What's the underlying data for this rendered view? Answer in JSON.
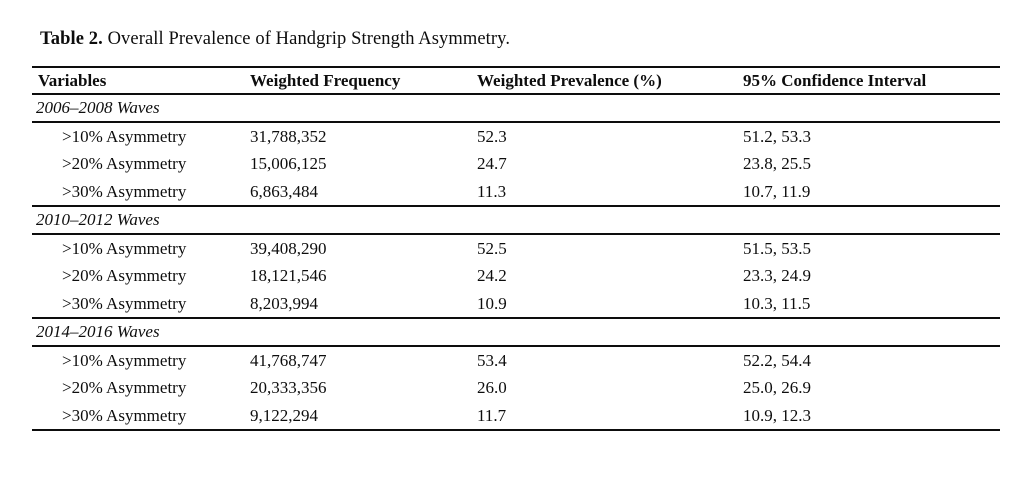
{
  "title": {
    "label": "Table 2.",
    "caption": "Overall Prevalence of Handgrip Strength Asymmetry."
  },
  "table": {
    "columns": [
      "Variables",
      "Weighted Frequency",
      "Weighted Prevalence (%)",
      "95% Confidence Interval"
    ],
    "sections": [
      {
        "header": "2006–2008 Waves",
        "rows": [
          {
            "variable": ">10% Asymmetry",
            "frequency": "31,788,352",
            "prevalence": "52.3",
            "ci": "51.2, 53.3"
          },
          {
            "variable": ">20% Asymmetry",
            "frequency": "15,006,125",
            "prevalence": "24.7",
            "ci": "23.8, 25.5"
          },
          {
            "variable": ">30% Asymmetry",
            "frequency": "6,863,484",
            "prevalence": "11.3",
            "ci": "10.7, 11.9"
          }
        ]
      },
      {
        "header": "2010–2012 Waves",
        "rows": [
          {
            "variable": ">10% Asymmetry",
            "frequency": "39,408,290",
            "prevalence": "52.5",
            "ci": "51.5, 53.5"
          },
          {
            "variable": ">20% Asymmetry",
            "frequency": "18,121,546",
            "prevalence": "24.2",
            "ci": "23.3, 24.9"
          },
          {
            "variable": ">30% Asymmetry",
            "frequency": "8,203,994",
            "prevalence": "10.9",
            "ci": "10.3, 11.5"
          }
        ]
      },
      {
        "header": "2014–2016 Waves",
        "rows": [
          {
            "variable": ">10% Asymmetry",
            "frequency": "41,768,747",
            "prevalence": "53.4",
            "ci": "52.2, 54.4"
          },
          {
            "variable": ">20% Asymmetry",
            "frequency": "20,333,356",
            "prevalence": "26.0",
            "ci": "25.0, 26.9"
          },
          {
            "variable": ">30% Asymmetry",
            "frequency": "9,122,294",
            "prevalence": "11.7",
            "ci": "10.9, 12.3"
          }
        ]
      }
    ]
  },
  "colors": {
    "background": "#ffffff",
    "text": "#0d0d0d",
    "rule": "#0d0d0d"
  }
}
